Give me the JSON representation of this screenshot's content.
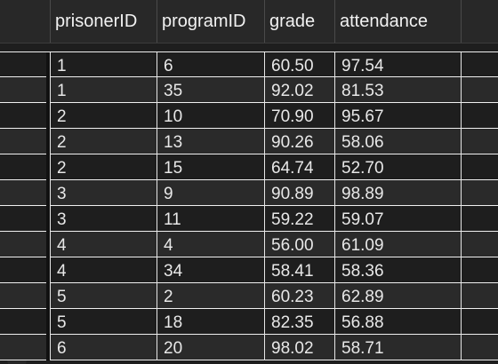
{
  "table": {
    "columns": [
      "prisonerID",
      "programID",
      "grade",
      "attendance"
    ],
    "rows": [
      [
        "1",
        "6",
        "60.50",
        "97.54"
      ],
      [
        "1",
        "35",
        "92.02",
        "81.53"
      ],
      [
        "2",
        "10",
        "70.90",
        "95.67"
      ],
      [
        "2",
        "13",
        "90.26",
        "58.06"
      ],
      [
        "2",
        "15",
        "64.74",
        "52.70"
      ],
      [
        "3",
        "9",
        "90.89",
        "98.89"
      ],
      [
        "3",
        "11",
        "59.22",
        "59.07"
      ],
      [
        "4",
        "4",
        "56.00",
        "61.09"
      ],
      [
        "4",
        "34",
        "58.41",
        "58.36"
      ],
      [
        "5",
        "2",
        "60.23",
        "62.89"
      ],
      [
        "5",
        "18",
        "82.35",
        "56.88"
      ],
      [
        "6",
        "20",
        "98.02",
        "58.71"
      ]
    ]
  }
}
